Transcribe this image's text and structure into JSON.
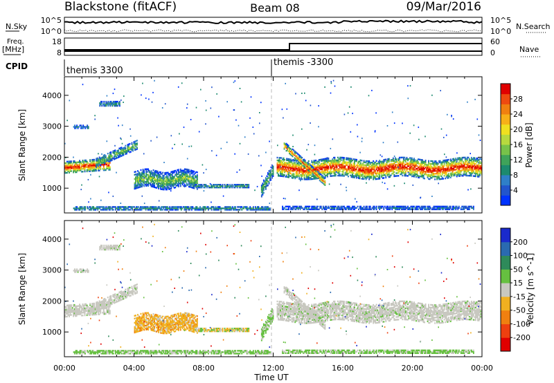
{
  "header": {
    "station": "Blackstone (fitACF)",
    "beam": "Beam 08",
    "date": "09/Mar/2016"
  },
  "summary_panels": {
    "nsky": {
      "label": "N.Sky",
      "right_label": "N.Search",
      "left_ticks": [
        "10^5",
        "10^0"
      ],
      "right_ticks": [
        "10^5",
        "10^0"
      ]
    },
    "freq": {
      "label_line1": "Freq.",
      "label_line2": "[MHz]",
      "left_ticks": [
        "18",
        "8"
      ],
      "right_label": "Nave",
      "right_ticks": [
        "60",
        "0"
      ]
    },
    "cpid": {
      "label": "CPID",
      "segments": [
        {
          "name": "themis 3300",
          "start_hour": 0
        },
        {
          "name": "themis -3300",
          "start_hour": 12
        }
      ]
    }
  },
  "chart_data": [
    {
      "type": "heatmap",
      "quantity": "Power",
      "ylabel": "Slant Range [km]",
      "yticks": [
        1000,
        2000,
        3000,
        4000
      ],
      "ylim": [
        200,
        4600
      ],
      "xlim": [
        0,
        24
      ],
      "colorbar": {
        "label": "Power [dB]",
        "ticks": [
          "28",
          "24",
          "20",
          "16",
          "12",
          "8",
          "4"
        ],
        "colors": [
          "#0033ff",
          "#2255cc",
          "#2f7fc8",
          "#1c8a6e",
          "#3fa35a",
          "#77c24a",
          "#b7d93f",
          "#f0e020",
          "#f7b018",
          "#f08010",
          "#ee4a10",
          "#e00000"
        ]
      },
      "features": [
        {
          "desc": "main band",
          "start_h": 0,
          "end_h": 2.5,
          "center_km": 1700
        },
        {
          "desc": "rising echo",
          "start_h": 2.5,
          "end_h": 4.2,
          "center_km": 2300
        },
        {
          "desc": "patch",
          "start_h": 4.0,
          "end_h": 7.5,
          "center_km": 1200
        },
        {
          "desc": "weak band",
          "start_h": 7.5,
          "end_h": 10.5,
          "center_km": 1050
        },
        {
          "desc": "strong band",
          "start_h": 12.2,
          "end_h": 24,
          "center_km": 1600
        }
      ]
    },
    {
      "type": "heatmap",
      "quantity": "Velocity",
      "ylabel": "Slant Range [km]",
      "xlabel": "Time UT",
      "yticks": [
        1000,
        2000,
        3000,
        4000
      ],
      "ylim": [
        200,
        4600
      ],
      "xlim": [
        0,
        24
      ],
      "xticks": [
        "00:00",
        "04:00",
        "08:00",
        "12:00",
        "16:00",
        "20:00",
        "00:00"
      ],
      "colorbar": {
        "label": "Velocity [m s^-1]",
        "ticks": [
          "200",
          "100",
          "50",
          "15",
          "-15",
          "-50",
          "-100",
          "-200"
        ],
        "colors": [
          "#1a2acc",
          "#2a6ab0",
          "#2e8a5a",
          "#66c040",
          "#c8c8c0",
          "#f0b020",
          "#f08010",
          "#ee4010",
          "#e00000"
        ]
      }
    }
  ]
}
